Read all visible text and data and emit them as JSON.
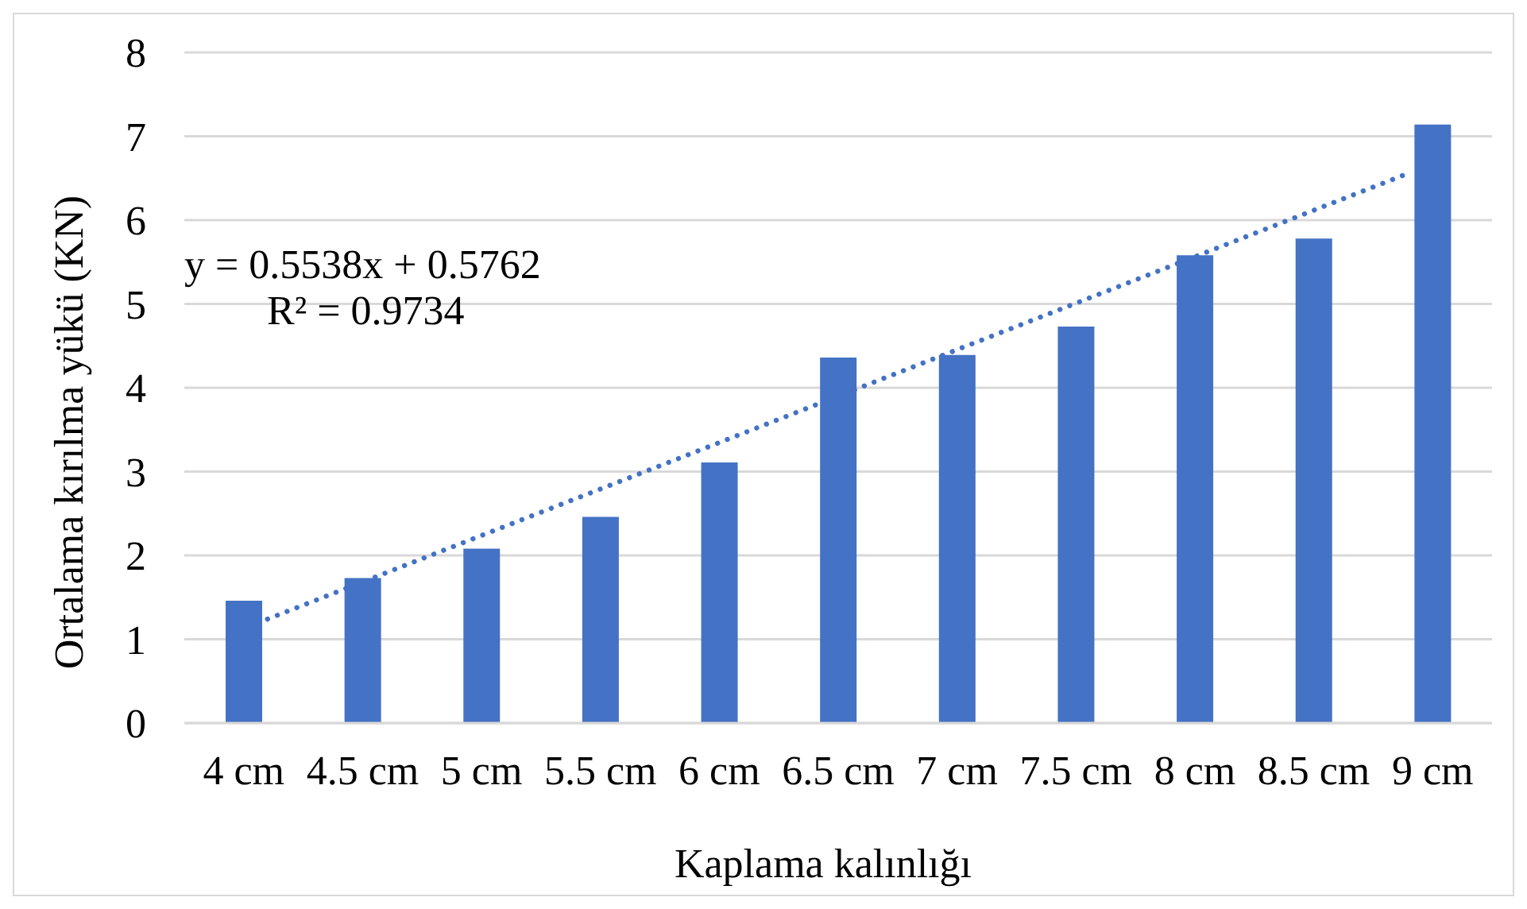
{
  "chart_data": {
    "type": "bar",
    "xlabel": "Kaplama kalınlığı",
    "ylabel": "Ortalama kırılma yükü (KN)",
    "x": [
      4,
      4.5,
      5,
      5.5,
      6,
      6.5,
      7,
      7.5,
      8,
      8.5,
      9
    ],
    "series": [
      {
        "color": "#4472c4",
        "values": [
          1.46,
          1.73,
          2.08,
          2.46,
          3.11,
          4.36,
          4.39,
          4.73,
          5.58,
          5.78,
          7.14
        ]
      },
      {
        "type": "line",
        "x": [
          4.1,
          8.9
        ],
        "values": [
          1.24,
          6.56
        ],
        "color": "#4472c4",
        "line_style": "dotted"
      }
    ],
    "xlim": [
      3.75,
      9.25
    ],
    "xticks": [
      {
        "value": 4,
        "label": "4 cm"
      },
      {
        "value": 4.5,
        "label": "4.5 cm"
      },
      {
        "value": 5,
        "label": "5 cm"
      },
      {
        "value": 5.5,
        "label": "5.5 cm"
      },
      {
        "value": 6,
        "label": "6 cm"
      },
      {
        "value": 6.5,
        "label": "6.5 cm"
      },
      {
        "value": 7,
        "label": "7 cm"
      },
      {
        "value": 7.5,
        "label": "7.5 cm"
      },
      {
        "value": 8,
        "label": "8 cm"
      },
      {
        "value": 8.5,
        "label": "8.5 cm"
      },
      {
        "value": 9,
        "label": "9 cm"
      }
    ],
    "ylim": [
      0,
      8
    ],
    "yticks": [
      0,
      1,
      2,
      3,
      4,
      5,
      6,
      7,
      8
    ],
    "grid": "y",
    "annotations": [
      "y = 0.5538x + 0.5762",
      "R² = 0.9734"
    ]
  }
}
